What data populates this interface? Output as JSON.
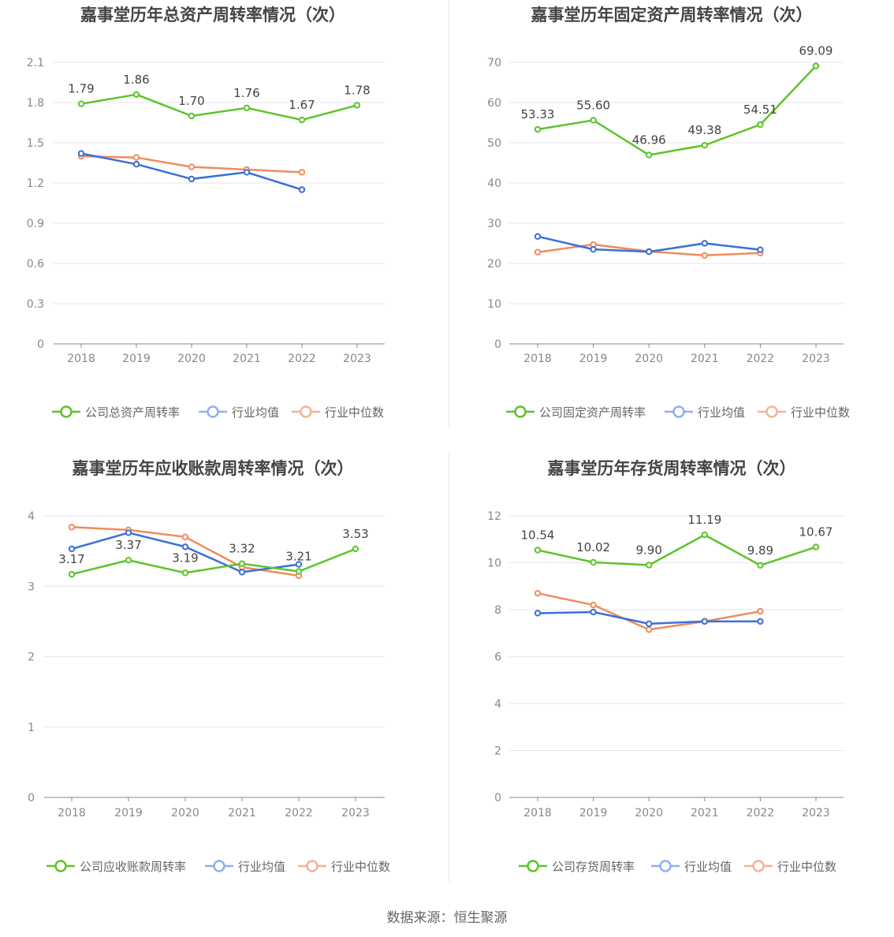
{
  "footer": "数据来源：恒生聚源",
  "colors": {
    "company": "#5cc42b",
    "avg": "#3b6fd8",
    "median": "#f08c5c"
  },
  "chart_data": [
    {
      "type": "line",
      "title": "嘉事堂历年总资产周转率情况（次）",
      "categories": [
        "2018",
        "2019",
        "2020",
        "2021",
        "2022",
        "2023"
      ],
      "ylim": [
        0,
        2.1
      ],
      "yticks": [
        0,
        0.3,
        0.6,
        0.9,
        1.2,
        1.5,
        1.8,
        2.1
      ],
      "ytick_labels": [
        "0",
        "0.3",
        "0.6",
        "0.9",
        "1.2",
        "1.5",
        "1.8",
        "2.1"
      ],
      "grid": true,
      "legend_position": "bottom",
      "series": [
        {
          "name": "公司总资产周转率",
          "values": [
            1.79,
            1.86,
            1.7,
            1.76,
            1.67,
            1.78
          ],
          "labels": [
            "1.79",
            "1.86",
            "1.70",
            "1.76",
            "1.67",
            "1.78"
          ]
        },
        {
          "name": "行业均值",
          "values": [
            1.42,
            1.34,
            1.23,
            1.28,
            1.15,
            null
          ]
        },
        {
          "name": "行业中位数",
          "values": [
            1.4,
            1.39,
            1.32,
            1.3,
            1.28,
            null
          ]
        }
      ]
    },
    {
      "type": "line",
      "title": "嘉事堂历年固定资产周转率情况（次）",
      "categories": [
        "2018",
        "2019",
        "2020",
        "2021",
        "2022",
        "2023"
      ],
      "ylim": [
        0,
        70
      ],
      "yticks": [
        0,
        10,
        20,
        30,
        40,
        50,
        60,
        70
      ],
      "ytick_labels": [
        "0",
        "10",
        "20",
        "30",
        "40",
        "50",
        "60",
        "70"
      ],
      "grid": true,
      "legend_position": "bottom",
      "series": [
        {
          "name": "公司固定资产周转率",
          "values": [
            53.33,
            55.6,
            46.96,
            49.38,
            54.51,
            69.09
          ],
          "labels": [
            "53.33",
            "55.60",
            "46.96",
            "49.38",
            "54.51",
            "69.09"
          ]
        },
        {
          "name": "行业均值",
          "values": [
            26.7,
            23.5,
            22.9,
            25.0,
            23.4,
            null
          ]
        },
        {
          "name": "行业中位数",
          "values": [
            22.8,
            24.7,
            23.0,
            22.0,
            22.6,
            null
          ]
        }
      ]
    },
    {
      "type": "line",
      "title": "嘉事堂历年应收账款周转率情况（次）",
      "categories": [
        "2018",
        "2019",
        "2020",
        "2021",
        "2022",
        "2023"
      ],
      "ylim": [
        0,
        4
      ],
      "yticks": [
        0,
        1,
        2,
        3,
        4
      ],
      "ytick_labels": [
        "0",
        "1",
        "2",
        "3",
        "4"
      ],
      "grid": true,
      "legend_position": "bottom",
      "series": [
        {
          "name": "公司应收账款周转率",
          "values": [
            3.17,
            3.37,
            3.19,
            3.32,
            3.21,
            3.53
          ],
          "labels": [
            "3.17",
            "3.37",
            "3.19",
            "3.32",
            "3.21",
            "3.53"
          ]
        },
        {
          "name": "行业均值",
          "values": [
            3.53,
            3.76,
            3.56,
            3.2,
            3.31,
            null
          ]
        },
        {
          "name": "行业中位数",
          "values": [
            3.84,
            3.8,
            3.7,
            3.27,
            3.15,
            null
          ]
        }
      ]
    },
    {
      "type": "line",
      "title": "嘉事堂历年存货周转率情况（次）",
      "categories": [
        "2018",
        "2019",
        "2020",
        "2021",
        "2022",
        "2023"
      ],
      "ylim": [
        0,
        12
      ],
      "yticks": [
        0,
        2,
        4,
        6,
        8,
        10,
        12
      ],
      "ytick_labels": [
        "0",
        "2",
        "4",
        "6",
        "8",
        "10",
        "12"
      ],
      "grid": true,
      "legend_position": "bottom",
      "series": [
        {
          "name": "公司存货周转率",
          "values": [
            10.54,
            10.02,
            9.9,
            11.19,
            9.89,
            10.67
          ],
          "labels": [
            "10.54",
            "10.02",
            "9.90",
            "11.19",
            "9.89",
            "10.67"
          ]
        },
        {
          "name": "行业均值",
          "values": [
            7.85,
            7.9,
            7.4,
            7.5,
            7.5,
            null
          ]
        },
        {
          "name": "行业中位数",
          "values": [
            8.7,
            8.2,
            7.15,
            7.5,
            7.93,
            null
          ]
        }
      ]
    }
  ]
}
